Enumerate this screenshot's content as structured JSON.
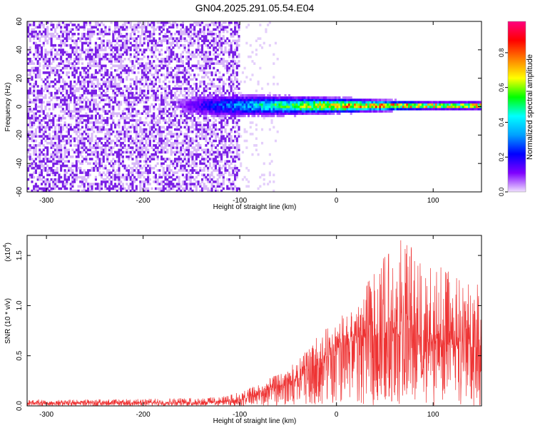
{
  "figure": {
    "title": "GN04.2025.291.05.54.E04"
  },
  "chart_data": [
    {
      "type": "heatmap",
      "xlabel": "Height of straight line (km)",
      "ylabel": "Frequency (Hz)",
      "xlim": [
        -320,
        150
      ],
      "ylim": [
        -60,
        60
      ],
      "xticks": [
        -300,
        -200,
        -100,
        0,
        100
      ],
      "yticks": [
        -60,
        -40,
        -20,
        0,
        20,
        40,
        60
      ],
      "colorbar": {
        "label": "Normalized spectral amplitude",
        "range": [
          0,
          0.98
        ],
        "ticks": [
          0.0,
          0.2,
          0.4,
          0.6,
          0.8
        ],
        "tick_labels": [
          "0.0",
          "0.2",
          "0.4",
          "0.6",
          "0.8"
        ],
        "colormap": "rainbow",
        "colors": [
          "#f0e0ff",
          "#7f00ff",
          "#0000ff",
          "#00a0ff",
          "#00ffff",
          "#00ff00",
          "#ffff00",
          "#ff8000",
          "#ff0000",
          "#ff0080"
        ]
      },
      "features": {
        "noise_region_x": [
          -320,
          -100
        ],
        "noise_amplitude": 0.12,
        "noise_color": "#7a1fe6",
        "signal_center_freq": 0,
        "band_halfwidth_start": 14,
        "band_halfwidth_end": 4,
        "peak_x": 0,
        "peak_amplitude": 0.95
      }
    },
    {
      "type": "line",
      "xlabel": "Height of straight line (km)",
      "ylabel": "SNR (10 * v/v)",
      "yscale_label": "(x10",
      "yscale_exp": "4",
      "xlim": [
        -320,
        150
      ],
      "ylim": [
        0,
        1.7
      ],
      "xticks": [
        -300,
        -200,
        -100,
        0,
        100
      ],
      "yticks": [
        0.0,
        0.5,
        1.0,
        1.5
      ],
      "ytick_labels": [
        "0.0",
        "0.5",
        "1.0",
        "1.5"
      ],
      "color": "#ee3333",
      "envelope": {
        "x": [
          -320,
          -200,
          -120,
          -100,
          -80,
          -60,
          -40,
          -20,
          0,
          20,
          40,
          60,
          80,
          100,
          120,
          150
        ],
        "mean": [
          0.03,
          0.03,
          0.04,
          0.06,
          0.12,
          0.18,
          0.25,
          0.4,
          0.55,
          0.65,
          0.7,
          0.72,
          0.68,
          0.62,
          0.6,
          0.58
        ],
        "max": [
          0.06,
          0.07,
          0.09,
          0.14,
          0.22,
          0.32,
          0.45,
          0.7,
          0.85,
          1.05,
          1.35,
          1.7,
          1.6,
          1.5,
          1.3,
          1.2
        ]
      }
    }
  ]
}
